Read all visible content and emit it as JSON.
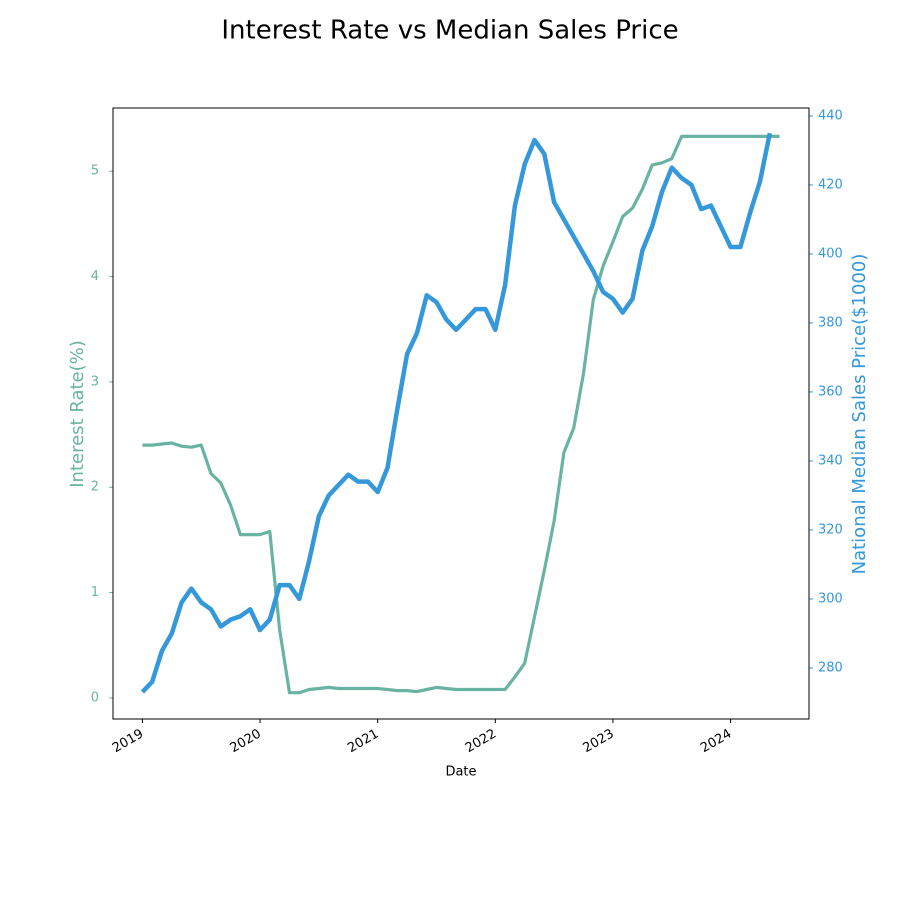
{
  "chart_data": {
    "type": "line",
    "title": "Interest Rate vs Median Sales Price",
    "x_label": "Date",
    "y_label": "Interest Rate(%)",
    "y2_label": "National Median Sales Price($1000)",
    "x": [
      "2019-01",
      "2019-02",
      "2019-03",
      "2019-04",
      "2019-05",
      "2019-06",
      "2019-07",
      "2019-08",
      "2019-09",
      "2019-10",
      "2019-11",
      "2019-12",
      "2020-01",
      "2020-02",
      "2020-03",
      "2020-04",
      "2020-05",
      "2020-06",
      "2020-07",
      "2020-08",
      "2020-09",
      "2020-10",
      "2020-11",
      "2020-12",
      "2021-01",
      "2021-02",
      "2021-03",
      "2021-04",
      "2021-05",
      "2021-06",
      "2021-07",
      "2021-08",
      "2021-09",
      "2021-10",
      "2021-11",
      "2021-12",
      "2022-01",
      "2022-02",
      "2022-03",
      "2022-04",
      "2022-05",
      "2022-06",
      "2022-07",
      "2022-08",
      "2022-09",
      "2022-10",
      "2022-11",
      "2022-12",
      "2023-01",
      "2023-02",
      "2023-03",
      "2023-04",
      "2023-05",
      "2023-06",
      "2023-07",
      "2023-08",
      "2023-09",
      "2023-10",
      "2023-11",
      "2023-12",
      "2024-01",
      "2024-02",
      "2024-03",
      "2024-04",
      "2024-05",
      "2024-06"
    ],
    "series": [
      {
        "color": "#69b3a2",
        "axis": "y",
        "values": [
          2.4,
          2.4,
          2.41,
          2.42,
          2.39,
          2.38,
          2.4,
          2.13,
          2.04,
          1.83,
          1.55,
          1.55,
          1.55,
          1.58,
          0.65,
          0.05,
          0.05,
          0.08,
          0.09,
          0.1,
          0.09,
          0.09,
          0.09,
          0.09,
          0.09,
          0.08,
          0.07,
          0.07,
          0.06,
          0.08,
          0.1,
          0.09,
          0.08,
          0.08,
          0.08,
          0.08,
          0.08,
          0.08,
          0.2,
          0.33,
          0.77,
          1.21,
          1.68,
          2.33,
          2.56,
          3.08,
          3.78,
          4.1,
          4.33,
          4.57,
          4.65,
          4.83,
          5.06,
          5.08,
          5.12,
          5.33,
          5.33,
          5.33,
          5.33,
          5.33,
          5.33,
          5.33,
          5.33,
          5.33,
          5.33,
          5.33
        ]
      },
      {
        "color": "#3498db",
        "axis": "y2",
        "values": [
          273,
          276,
          285,
          290,
          299,
          303,
          299,
          297,
          292,
          294,
          295,
          297,
          291,
          294,
          304,
          304,
          300,
          311,
          324,
          330,
          333,
          336,
          334,
          334,
          331,
          338,
          355,
          371,
          377,
          388,
          386,
          381,
          378,
          381,
          384,
          384,
          378,
          391,
          414,
          426,
          433,
          429,
          415,
          410,
          405,
          400,
          395,
          389,
          387,
          383,
          387,
          401,
          408,
          418,
          425,
          422,
          420,
          413,
          414,
          408,
          402,
          402,
          412,
          421,
          435,
          null
        ]
      }
    ],
    "xlim": [
      "2018-10",
      "2024-09"
    ],
    "xticks": [
      "2019",
      "2020",
      "2021",
      "2022",
      "2023",
      "2024"
    ],
    "ylim": [
      -0.2,
      5.6
    ],
    "yticks": [
      0,
      1,
      2,
      3,
      4,
      5
    ],
    "y2lim": [
      265.2,
      442.3
    ],
    "y2ticks": [
      280,
      300,
      320,
      340,
      360,
      380,
      400,
      420,
      440
    ]
  }
}
